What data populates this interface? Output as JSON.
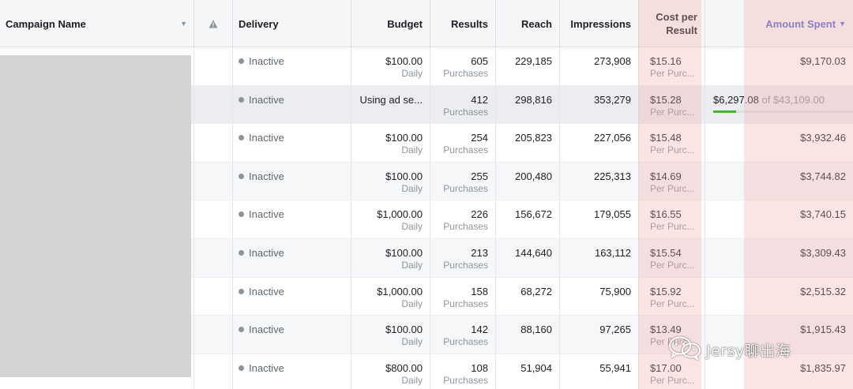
{
  "header": {
    "campaign_name": "Campaign Name",
    "delivery": "Delivery",
    "budget": "Budget",
    "results": "Results",
    "reach": "Reach",
    "impressions": "Impressions",
    "cost_per_result_line1": "Cost per",
    "cost_per_result_line2": "Result",
    "amount_spent": "Amount Spent"
  },
  "rows": [
    {
      "delivery": "Inactive",
      "budget": "$100.00",
      "budget_sub": "Daily",
      "results": "605",
      "results_sub": "Purchases",
      "reach": "229,185",
      "impressions": "273,908",
      "cpr": "$15.16",
      "cpr_sub": "Per Purc...",
      "amount": "$9,170.03"
    },
    {
      "delivery": "Inactive",
      "budget": "Using ad se...",
      "budget_sub": "",
      "results": "412",
      "results_sub": "Purchases",
      "reach": "298,816",
      "impressions": "353,279",
      "cpr": "$15.28",
      "cpr_sub": "Per Purc...",
      "amount": "$6,297.08",
      "amount_of": "of $43,109.00",
      "amount_progress": 0.146
    },
    {
      "delivery": "Inactive",
      "budget": "$100.00",
      "budget_sub": "Daily",
      "results": "254",
      "results_sub": "Purchases",
      "reach": "205,823",
      "impressions": "227,056",
      "cpr": "$15.48",
      "cpr_sub": "Per Purc...",
      "amount": "$3,932.46"
    },
    {
      "delivery": "Inactive",
      "budget": "$100.00",
      "budget_sub": "Daily",
      "results": "255",
      "results_sub": "Purchases",
      "reach": "200,480",
      "impressions": "225,313",
      "cpr": "$14.69",
      "cpr_sub": "Per Purc...",
      "amount": "$3,744.82"
    },
    {
      "delivery": "Inactive",
      "budget": "$1,000.00",
      "budget_sub": "Daily",
      "results": "226",
      "results_sub": "Purchases",
      "reach": "156,672",
      "impressions": "179,055",
      "cpr": "$16.55",
      "cpr_sub": "Per Purc...",
      "amount": "$3,740.15"
    },
    {
      "delivery": "Inactive",
      "budget": "$100.00",
      "budget_sub": "Daily",
      "results": "213",
      "results_sub": "Purchases",
      "reach": "144,640",
      "impressions": "163,112",
      "cpr": "$15.54",
      "cpr_sub": "Per Purc...",
      "amount": "$3,309.43"
    },
    {
      "delivery": "Inactive",
      "budget": "$1,000.00",
      "budget_sub": "Daily",
      "results": "158",
      "results_sub": "Purchases",
      "reach": "68,272",
      "impressions": "75,900",
      "cpr": "$15.92",
      "cpr_sub": "Per Purc...",
      "amount": "$2,515.32"
    },
    {
      "delivery": "Inactive",
      "budget": "$100.00",
      "budget_sub": "Daily",
      "results": "142",
      "results_sub": "Purchases",
      "reach": "88,160",
      "impressions": "97,265",
      "cpr": "$13.49",
      "cpr_sub": "Per Purc...",
      "amount": "$1,915.43"
    },
    {
      "delivery": "Inactive",
      "budget": "$800.00",
      "budget_sub": "Daily",
      "results": "108",
      "results_sub": "Purchases",
      "reach": "51,904",
      "impressions": "55,941",
      "cpr": "$17.00",
      "cpr_sub": "Per Purc...",
      "amount": "$1,835.97"
    }
  ],
  "watermark": {
    "text": "Jersy聊出海"
  },
  "colors": {
    "accent_amount": "#5b6cd6",
    "highlight": "#f4aaaa",
    "progress": "#42b72a",
    "inactive_dot": "#8d949e"
  },
  "icons": {
    "sort": "chevron-down-icon",
    "warning_column": "warning-icon",
    "watermark": "wechat-icon"
  }
}
